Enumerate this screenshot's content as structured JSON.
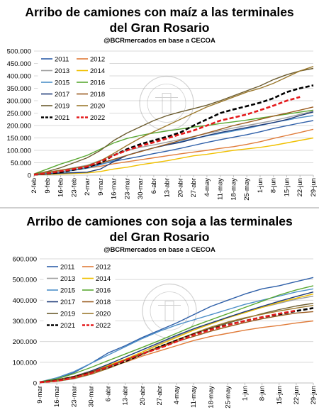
{
  "chart_data": [
    {
      "type": "line",
      "title": "Arribo de camiones con maíz a las terminales del Gran Rosario",
      "title_lines": [
        "Arribo de camiones con maíz a las terminales",
        "del Gran Rosario"
      ],
      "subtitle": "@BCRmercados en base a CECOA",
      "ylim": [
        0,
        500000
      ],
      "yticks": [
        "0",
        "50.000",
        "100.000",
        "150.000",
        "200.000",
        "250.000",
        "300.000",
        "350.000",
        "400.000",
        "450.000",
        "500.000"
      ],
      "categories": [
        "2-feb",
        "9-feb",
        "16-feb",
        "23-feb",
        "2-mar",
        "9-mar",
        "16-mar",
        "23-mar",
        "30-mar",
        "6-abr",
        "13-abr",
        "20-abr",
        "27-abr",
        "4-may",
        "11-may",
        "18-may",
        "25-may",
        "1-jun",
        "8-jun",
        "15-jun",
        "22-jun",
        "29-jun"
      ],
      "grid": true,
      "legend_position": "top-left",
      "series": [
        {
          "name": "2011",
          "color": "#2e5fa8",
          "dashed": false,
          "values": [
            2000,
            8000,
            14000,
            22000,
            30000,
            44000,
            56000,
            66000,
            76000,
            87000,
            97000,
            108000,
            120000,
            132000,
            143000,
            153000,
            163000,
            175000,
            188000,
            199000,
            210000,
            220000
          ]
        },
        {
          "name": "2012",
          "color": "#e07b39",
          "dashed": false,
          "values": [
            3000,
            8000,
            14000,
            20000,
            28000,
            36000,
            46000,
            54000,
            62000,
            70000,
            78000,
            86000,
            93000,
            100000,
            108000,
            115000,
            124000,
            135000,
            148000,
            160000,
            172000,
            185000
          ]
        },
        {
          "name": "2013",
          "color": "#a0a0a0",
          "dashed": false,
          "values": [
            2000,
            10000,
            20000,
            30000,
            40000,
            60000,
            82000,
            100000,
            112000,
            122000,
            133000,
            144000,
            156000,
            168000,
            179000,
            190000,
            200000,
            210000,
            220000,
            232000,
            245000,
            258000
          ]
        },
        {
          "name": "2014",
          "color": "#f0c000",
          "dashed": false,
          "values": [
            1000,
            3000,
            5000,
            7000,
            9000,
            15000,
            25000,
            32000,
            42000,
            50000,
            58000,
            68000,
            78000,
            84000,
            92000,
            100000,
            106000,
            112000,
            120000,
            130000,
            140000,
            150000
          ]
        },
        {
          "name": "2015",
          "color": "#4d8fc8",
          "dashed": false,
          "values": [
            2000,
            6000,
            12000,
            20000,
            28000,
            42000,
            60000,
            80000,
            96000,
            110000,
            122000,
            135000,
            148000,
            158000,
            168000,
            178000,
            188000,
            200000,
            212000,
            222000,
            232000,
            240000
          ]
        },
        {
          "name": "2016",
          "color": "#5aa832",
          "dashed": false,
          "values": [
            5000,
            25000,
            45000,
            62000,
            80000,
            105000,
            130000,
            148000,
            160000,
            170000,
            178000,
            186000,
            194000,
            200000,
            208000,
            215000,
            222000,
            230000,
            238000,
            246000,
            254000,
            262000
          ]
        },
        {
          "name": "2017",
          "color": "#1e3a78",
          "dashed": false,
          "values": [
            2000,
            5000,
            8000,
            10000,
            12000,
            25000,
            55000,
            80000,
            96000,
            110000,
            122000,
            132000,
            146000,
            160000,
            172000,
            182000,
            192000,
            202000,
            212000,
            224000,
            240000,
            255000
          ]
        },
        {
          "name": "2018",
          "color": "#9a5a1e",
          "dashed": false,
          "values": [
            5000,
            12000,
            20000,
            28000,
            36000,
            48000,
            64000,
            80000,
            95000,
            110000,
            125000,
            140000,
            155000,
            170000,
            185000,
            200000,
            212000,
            225000,
            238000,
            250000,
            262000,
            275000
          ]
        },
        {
          "name": "2019",
          "color": "#6b5b2e",
          "dashed": false,
          "values": [
            5000,
            15000,
            30000,
            50000,
            70000,
            100000,
            140000,
            170000,
            195000,
            220000,
            240000,
            255000,
            268000,
            282000,
            300000,
            320000,
            340000,
            360000,
            385000,
            405000,
            420000,
            430000
          ]
        },
        {
          "name": "2020",
          "color": "#9c7a2e",
          "dashed": false,
          "values": [
            5000,
            12000,
            20000,
            28000,
            38000,
            58000,
            88000,
            120000,
            150000,
            175000,
            200000,
            225000,
            250000,
            275000,
            295000,
            315000,
            335000,
            350000,
            370000,
            395000,
            420000,
            438000
          ]
        },
        {
          "name": "2021",
          "color": "#000000",
          "dashed": true,
          "values": [
            2000,
            6000,
            12000,
            22000,
            32000,
            50000,
            80000,
            105000,
            125000,
            140000,
            155000,
            172000,
            200000,
            225000,
            250000,
            265000,
            278000,
            292000,
            310000,
            335000,
            350000,
            362000
          ]
        },
        {
          "name": "2022",
          "color": "#e41a1c",
          "dashed": true,
          "values": [
            2000,
            8000,
            16000,
            25000,
            35000,
            55000,
            80000,
            100000,
            118000,
            132000,
            148000,
            165000,
            180000,
            200000,
            220000,
            232000,
            245000,
            262000,
            280000,
            300000,
            315000,
            null
          ]
        }
      ]
    },
    {
      "type": "line",
      "title": "Arribo de camiones con soja a las terminales del Gran Rosario",
      "title_lines": [
        "Arribo de camiones con soja a las terminales",
        "del Gran Rosario"
      ],
      "subtitle": "@BCRmercados en base a CECOA",
      "ylim": [
        0,
        600000
      ],
      "yticks": [
        "0",
        "100.000",
        "200.000",
        "300.000",
        "400.000",
        "500.000",
        "600.000"
      ],
      "categories": [
        "9-mar",
        "16-mar",
        "23-mar",
        "30-mar",
        "6-abr",
        "13-abr",
        "20-abr",
        "27-abr",
        "4-may",
        "11-may",
        "18-may",
        "25-may",
        "1-jun",
        "8-jun",
        "15-jun",
        "22-jun",
        "29-jun"
      ],
      "grid": true,
      "legend_position": "top-left",
      "series": [
        {
          "name": "2011",
          "color": "#2e5fa8",
          "dashed": false,
          "values": [
            5000,
            20000,
            50000,
            95000,
            145000,
            180000,
            220000,
            255000,
            290000,
            330000,
            370000,
            400000,
            430000,
            455000,
            470000,
            490000,
            510000
          ]
        },
        {
          "name": "2012",
          "color": "#e07b39",
          "dashed": false,
          "values": [
            3000,
            10000,
            25000,
            48000,
            75000,
            100000,
            130000,
            155000,
            180000,
            205000,
            225000,
            240000,
            255000,
            268000,
            278000,
            290000,
            300000
          ]
        },
        {
          "name": "2013",
          "color": "#a0a0a0",
          "dashed": false,
          "values": [
            2000,
            8000,
            20000,
            42000,
            75000,
            110000,
            150000,
            190000,
            225000,
            260000,
            290000,
            315000,
            340000,
            365000,
            385000,
            405000,
            420000
          ]
        },
        {
          "name": "2014",
          "color": "#f0c000",
          "dashed": false,
          "values": [
            3000,
            12000,
            30000,
            55000,
            85000,
            115000,
            150000,
            185000,
            220000,
            255000,
            285000,
            315000,
            340000,
            365000,
            390000,
            410000,
            430000
          ]
        },
        {
          "name": "2015",
          "color": "#4d8fc8",
          "dashed": false,
          "values": [
            5000,
            25000,
            55000,
            95000,
            135000,
            175000,
            215000,
            250000,
            280000,
            305000,
            330000,
            355000,
            380000,
            400000,
            420000,
            440000,
            455000
          ]
        },
        {
          "name": "2016",
          "color": "#5aa832",
          "dashed": false,
          "values": [
            5000,
            20000,
            45000,
            75000,
            108000,
            140000,
            172000,
            205000,
            240000,
            275000,
            305000,
            335000,
            365000,
            395000,
            425000,
            450000,
            470000
          ]
        },
        {
          "name": "2017",
          "color": "#1e3a78",
          "dashed": false,
          "values": [
            3000,
            15000,
            32000,
            58000,
            90000,
            125000,
            160000,
            195000,
            230000,
            262000,
            290000,
            318000,
            345000,
            370000,
            395000,
            418000,
            440000
          ]
        },
        {
          "name": "2018",
          "color": "#9a5a1e",
          "dashed": false,
          "values": [
            5000,
            15000,
            32000,
            55000,
            80000,
            110000,
            140000,
            170000,
            200000,
            225000,
            250000,
            272000,
            292000,
            310000,
            325000,
            338000,
            345000
          ]
        },
        {
          "name": "2019",
          "color": "#6b5b2e",
          "dashed": false,
          "values": [
            5000,
            14000,
            30000,
            52000,
            80000,
            110000,
            142000,
            175000,
            208000,
            238000,
            265000,
            290000,
            312000,
            335000,
            355000,
            372000,
            385000
          ]
        },
        {
          "name": "2020",
          "color": "#9c7a2e",
          "dashed": false,
          "values": [
            2000,
            8000,
            22000,
            42000,
            70000,
            102000,
            138000,
            172000,
            208000,
            240000,
            270000,
            295000,
            315000,
            332000,
            348000,
            362000,
            375000
          ]
        },
        {
          "name": "2021",
          "color": "#000000",
          "dashed": true,
          "values": [
            3000,
            12000,
            28000,
            50000,
            75000,
            105000,
            140000,
            175000,
            205000,
            235000,
            260000,
            282000,
            300000,
            318000,
            332000,
            348000,
            362000
          ]
        },
        {
          "name": "2022",
          "color": "#e41a1c",
          "dashed": true,
          "values": [
            3000,
            10000,
            25000,
            48000,
            78000,
            110000,
            142000,
            168000,
            200000,
            232000,
            258000,
            280000,
            300000,
            318000,
            335000,
            350000,
            null
          ]
        }
      ]
    }
  ],
  "watermark": {
    "seal_text": "BOLSA DE COMERCIO DE ROSARIO"
  }
}
